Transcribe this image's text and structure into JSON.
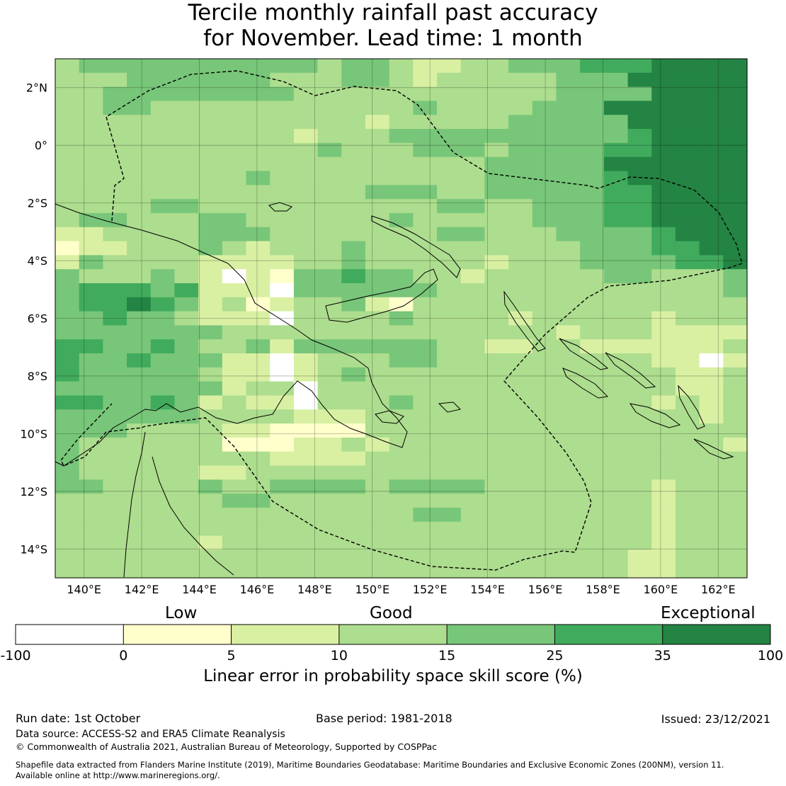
{
  "title": {
    "line1": "Tercile monthly rainfall past accuracy",
    "line2": "for November. Lead time: 1 month"
  },
  "map": {
    "lon_ticks": [
      "140°E",
      "142°E",
      "144°E",
      "146°E",
      "148°E",
      "150°E",
      "152°E",
      "154°E",
      "156°E",
      "158°E",
      "160°E",
      "162°E"
    ],
    "lat_ticks": [
      "2°N",
      "0°",
      "2°S",
      "4°S",
      "6°S",
      "8°S",
      "10°S",
      "12°S",
      "14°S"
    ],
    "lon_range": [
      139,
      163
    ],
    "lat_range": [
      -15,
      3
    ]
  },
  "colorbar": {
    "category_labels": [
      "Low",
      "Good",
      "Exceptional"
    ],
    "tick_labels": [
      "-100",
      "0",
      "5",
      "10",
      "15",
      "25",
      "35",
      "100"
    ],
    "colors": [
      "#ffffff",
      "#ffffcc",
      "#d9f0a3",
      "#addd8e",
      "#78c679",
      "#41ab5d",
      "#238443"
    ],
    "title": "Linear error in probability space skill score (%)"
  },
  "footer": {
    "run_date": "Run date: 1st October",
    "base_period": "Base period: 1981-2018",
    "issued": "Issued: 23/12/2021",
    "data_source": "Data source: ACCESS-S2 and ERA5 Climate Reanalysis",
    "copyright": "© Commonwealth of Australia 2021, Australian Bureau of Meteorology, Supported by COSPPac",
    "shapefile_line1": "Shapefile data extracted from Flanders Marine Institute (2019), Maritime Boundaries Geodatabase: Maritime Boundaries and Exclusive Economic Zones (200NM), version 11.",
    "shapefile_line2": "Available online at http://www.marineregions.org/."
  },
  "skill_grid": {
    "rows": [
      "34444444444344322334445556666",
      "33344444433344323333344466666",
      "33444444443333333333344446666",
      "33443333333333343333444666666",
      "33333333333332333334444466666",
      "33333333332333444444444456666",
      "33333333333433344434444556666",
      "33333333333333333344444666666",
      "33333333433333333344444566666",
      "33333333333334443344444556666",
      "33334433333333334433444556666",
      "34433344333333433333444556666",
      "22333344433333334433344445666",
      "12233343233343333333334445566",
      "24333322223343333323334444556",
      "43334320214454433233333443334",
      "45554522204444443333333333334",
      "45565423123342133333333333333",
      "44544322203333433332333332333",
      "44444443333333333333323332222",
      "55445433424444443322332222223",
      "54454442202333443333333332202",
      "54444432202343333333333333223",
      "44444442330333333333333333223",
      "55445423220333433333333332323",
      "44444433332223333333333333323",
      "44433332211113333333333333333",
      "43333331112232333333333333332",
      "43333333322223333333333333333",
      "43333322333333333333333333333",
      "44333343344443444433333332333",
      "33333334433333333333333332333",
      "33333333333333344333333332333",
      "33333333333333333333333332333",
      "33333323333333333333333332333",
      "33333333333333333333333322333",
      "33333333333333333333333322333"
    ]
  }
}
